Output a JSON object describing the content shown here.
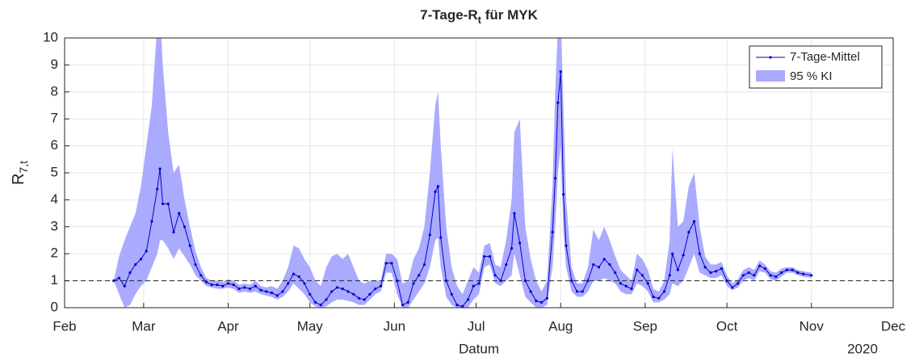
{
  "chart_data": {
    "type": "line",
    "title": {
      "main": "7-Tage-R",
      "sub": "t",
      "rest": " für MYK"
    },
    "xlabel": "Datum",
    "ylabel": {
      "main": "R",
      "sub": "7,t"
    },
    "annotation": "2020",
    "xlim": [
      32,
      336
    ],
    "xticks": [
      {
        "value": 32,
        "label": "Feb"
      },
      {
        "value": 61,
        "label": "Mar"
      },
      {
        "value": 92,
        "label": "Apr"
      },
      {
        "value": 122,
        "label": "May"
      },
      {
        "value": 153,
        "label": "Jun"
      },
      {
        "value": 183,
        "label": "Jul"
      },
      {
        "value": 214,
        "label": "Aug"
      },
      {
        "value": 245,
        "label": "Sep"
      },
      {
        "value": 275,
        "label": "Oct"
      },
      {
        "value": 306,
        "label": "Nov"
      },
      {
        "value": 336,
        "label": "Dec"
      }
    ],
    "ylim": [
      0,
      10
    ],
    "yticks": [
      0,
      1,
      2,
      3,
      4,
      5,
      6,
      7,
      8,
      9,
      10
    ],
    "grid": true,
    "legend": "top-right",
    "reference_line": 1,
    "x": [
      50,
      52,
      54,
      56,
      58,
      60,
      62,
      64,
      66,
      67,
      68,
      70,
      72,
      74,
      76,
      78,
      80,
      82,
      84,
      86,
      88,
      90,
      92,
      94,
      96,
      98,
      100,
      102,
      104,
      106,
      108,
      110,
      112,
      114,
      116,
      118,
      120,
      122,
      124,
      126,
      128,
      130,
      132,
      134,
      136,
      138,
      140,
      142,
      144,
      146,
      148,
      150,
      152,
      154,
      156,
      158,
      160,
      162,
      164,
      166,
      168,
      169,
      170,
      172,
      174,
      176,
      178,
      180,
      182,
      184,
      186,
      188,
      190,
      192,
      194,
      196,
      197,
      199,
      201,
      203,
      205,
      207,
      209,
      211,
      212,
      213,
      214,
      215,
      216,
      218,
      220,
      222,
      224,
      226,
      228,
      230,
      232,
      234,
      236,
      238,
      240,
      242,
      244,
      246,
      248,
      250,
      252,
      254,
      255,
      257,
      259,
      261,
      263,
      265,
      267,
      269,
      271,
      273,
      275,
      277,
      279,
      281,
      283,
      285,
      287,
      289,
      291,
      293,
      295,
      297,
      299,
      301,
      303,
      306
    ],
    "series": [
      {
        "name": "7-Tage-Mittel",
        "color": "#0000cc",
        "values": [
          1.0,
          1.1,
          0.8,
          1.3,
          1.6,
          1.8,
          2.1,
          3.2,
          4.4,
          5.15,
          3.85,
          3.85,
          2.8,
          3.5,
          3.0,
          2.3,
          1.6,
          1.2,
          0.95,
          0.85,
          0.85,
          0.8,
          0.9,
          0.85,
          0.7,
          0.75,
          0.7,
          0.8,
          0.65,
          0.6,
          0.55,
          0.45,
          0.6,
          0.9,
          1.25,
          1.15,
          0.9,
          0.5,
          0.2,
          0.1,
          0.3,
          0.6,
          0.75,
          0.7,
          0.6,
          0.5,
          0.35,
          0.3,
          0.5,
          0.7,
          0.8,
          1.65,
          1.65,
          1.0,
          0.1,
          0.2,
          0.9,
          1.2,
          1.6,
          2.7,
          4.3,
          4.5,
          2.6,
          1.0,
          0.5,
          0.1,
          0.05,
          0.3,
          0.8,
          0.9,
          1.9,
          1.9,
          1.2,
          1.0,
          1.6,
          2.2,
          3.5,
          2.4,
          1.0,
          0.6,
          0.25,
          0.2,
          0.35,
          2.8,
          4.8,
          7.6,
          8.75,
          4.2,
          2.3,
          1.0,
          0.6,
          0.6,
          1.0,
          1.6,
          1.5,
          1.8,
          1.6,
          1.3,
          0.9,
          0.8,
          0.7,
          1.4,
          1.2,
          0.9,
          0.4,
          0.35,
          0.6,
          1.2,
          2.0,
          1.4,
          1.95,
          2.8,
          3.2,
          2.0,
          1.5,
          1.3,
          1.35,
          1.45,
          1.0,
          0.75,
          0.9,
          1.2,
          1.3,
          1.2,
          1.55,
          1.45,
          1.2,
          1.15,
          1.3,
          1.4,
          1.4,
          1.3,
          1.25,
          1.2
        ]
      }
    ],
    "band": {
      "name": "95 % KI",
      "color": "#aaaaff",
      "lower": [
        1.0,
        0.5,
        0,
        0.1,
        0.5,
        0.8,
        1.0,
        1.5,
        2.0,
        2.5,
        2.5,
        2.2,
        1.8,
        2.2,
        1.9,
        1.6,
        1.2,
        1.0,
        0.8,
        0.75,
        0.7,
        0.7,
        0.75,
        0.7,
        0.55,
        0.6,
        0.55,
        0.6,
        0.5,
        0.45,
        0.4,
        0.3,
        0.4,
        0.6,
        0.9,
        0.7,
        0.5,
        0.2,
        0.05,
        0,
        0.05,
        0.2,
        0.3,
        0.3,
        0.25,
        0.2,
        0.1,
        0.1,
        0.3,
        0.5,
        0.6,
        1.3,
        1.3,
        0.5,
        0,
        0,
        0.3,
        0.6,
        0.9,
        1.5,
        2.5,
        2.6,
        1.5,
        0.4,
        0.1,
        0,
        0,
        0,
        0.3,
        0.5,
        1.5,
        1.6,
        0.9,
        0.8,
        1.0,
        1.2,
        2.0,
        1.2,
        0.4,
        0.2,
        0,
        0,
        0.1,
        1.5,
        3.0,
        5,
        6,
        2.8,
        1.5,
        0.6,
        0.4,
        0.4,
        0.6,
        1.0,
        1.0,
        1.1,
        1.0,
        0.9,
        0.6,
        0.5,
        0.5,
        0.9,
        0.8,
        0.6,
        0.2,
        0.2,
        0.3,
        0.5,
        0.9,
        0.8,
        1.0,
        1.5,
        2.0,
        1.3,
        1.2,
        1.1,
        1.1,
        1.2,
        0.8,
        0.65,
        0.75,
        1.0,
        1.1,
        1.0,
        1.35,
        1.3,
        1.05,
        1.0,
        1.15,
        1.3,
        1.3,
        1.2,
        1.15,
        1.1
      ],
      "upper": [
        1.0,
        1.9,
        2.5,
        3.0,
        3.5,
        4.5,
        6.0,
        7.5,
        10.5,
        11,
        9,
        6.5,
        5.0,
        5.3,
        4.0,
        3.0,
        2.1,
        1.5,
        1.1,
        1.0,
        1.0,
        0.95,
        1.05,
        1.0,
        0.85,
        0.9,
        0.85,
        1.0,
        0.8,
        0.75,
        0.8,
        0.7,
        1.0,
        1.5,
        2.3,
        2.2,
        1.8,
        1.5,
        1.0,
        0.8,
        1.5,
        1.9,
        2.0,
        1.8,
        2.0,
        1.5,
        1.0,
        0.9,
        1.0,
        1.0,
        1.0,
        2.0,
        2.0,
        1.8,
        0.9,
        1.0,
        1.8,
        2.2,
        3.0,
        5.0,
        7.5,
        8.0,
        6.0,
        3.0,
        1.5,
        0.8,
        0.5,
        1.0,
        1.5,
        1.3,
        2.3,
        2.4,
        1.6,
        1.5,
        2.5,
        4.0,
        6.5,
        7.0,
        3.0,
        1.8,
        1.0,
        0.6,
        1.0,
        4.5,
        8.0,
        10.5,
        11,
        7.5,
        4.0,
        1.5,
        0.9,
        0.9,
        1.5,
        2.9,
        2.5,
        3.0,
        2.5,
        1.9,
        1.4,
        1.2,
        1.0,
        2.0,
        1.8,
        1.4,
        0.7,
        0.6,
        1.0,
        2.5,
        5.9,
        3.0,
        3.2,
        4.5,
        5.0,
        3.0,
        1.9,
        1.6,
        1.6,
        1.7,
        1.2,
        0.9,
        1.05,
        1.4,
        1.5,
        1.4,
        1.75,
        1.6,
        1.35,
        1.3,
        1.45,
        1.5,
        1.5,
        1.4,
        1.35,
        1.3
      ]
    }
  }
}
